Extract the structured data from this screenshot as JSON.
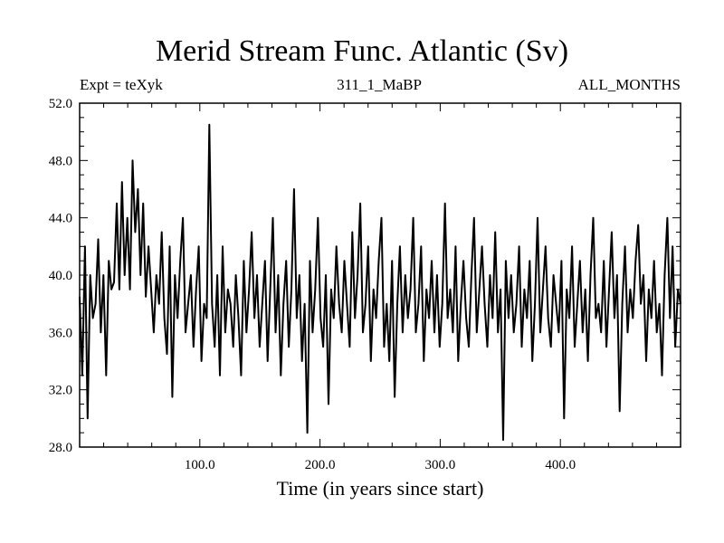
{
  "chart_data": {
    "type": "line",
    "title": "Merid Stream Func. Atlantic (Sv)",
    "subtitle_left": "Expt = teXyk",
    "subtitle_center": "311_1_MaBP",
    "subtitle_right": "ALL_MONTHS",
    "xlabel": "Time (in years since start)",
    "ylabel": "",
    "xlim": [
      0,
      500
    ],
    "ylim": [
      28,
      52
    ],
    "xticks": [
      100,
      200,
      300,
      400
    ],
    "xtick_labels": [
      "100.0",
      "200.0",
      "300.0",
      "400.0"
    ],
    "yticks": [
      28,
      32,
      36,
      40,
      44,
      48,
      52
    ],
    "ytick_labels": [
      "28.0",
      "32.0",
      "36.0",
      "40.0",
      "44.0",
      "48.0",
      "52.0"
    ],
    "series": [
      {
        "values": [
          38.5,
          33,
          42,
          30,
          40,
          37,
          38,
          42.5,
          36,
          40,
          33,
          41,
          39,
          39.5,
          45,
          39,
          46.5,
          40,
          44,
          39,
          48,
          43,
          46,
          40,
          45,
          38.5,
          42,
          39,
          36,
          40,
          38,
          43,
          37,
          34.5,
          42,
          31.5,
          40,
          37,
          41,
          44,
          36,
          38,
          40,
          35,
          39,
          42,
          34,
          38,
          37,
          50.5,
          38,
          35,
          40,
          33,
          42,
          36,
          39,
          38,
          35,
          40,
          37,
          33,
          41,
          36,
          39,
          43,
          37,
          40,
          35,
          38,
          41,
          34,
          39,
          44,
          36,
          40,
          33,
          38,
          41,
          35,
          39,
          46,
          37,
          40,
          34,
          38,
          29,
          41,
          36,
          39,
          44,
          37,
          35,
          40,
          31,
          39,
          37,
          42,
          38,
          36,
          41,
          38,
          35,
          43,
          37,
          40,
          45,
          36,
          38,
          42,
          34,
          39,
          37,
          41,
          44,
          35,
          38,
          34,
          41,
          31.5,
          38,
          42,
          36,
          40,
          37,
          39,
          44,
          36,
          38,
          42,
          34,
          39,
          37,
          41,
          36,
          40,
          35,
          38,
          45,
          37,
          39,
          36,
          42,
          34,
          38,
          41,
          37,
          35,
          40,
          44,
          36,
          39,
          42,
          38,
          35,
          40,
          37,
          43,
          36,
          39,
          28.5,
          41,
          37,
          40,
          36,
          38,
          42,
          35,
          39,
          37,
          41,
          34,
          38,
          44,
          36,
          39,
          42,
          37,
          35,
          40,
          38,
          36,
          41,
          30,
          39,
          37,
          42,
          35,
          38,
          41,
          36,
          39,
          34,
          40,
          44,
          37,
          38,
          36,
          41,
          35,
          39,
          43,
          37,
          40,
          30.5,
          38,
          42,
          36,
          39,
          37,
          41,
          43.5,
          38,
          40,
          34,
          39,
          37,
          41,
          36,
          38,
          33,
          40,
          44,
          37,
          42,
          35,
          39,
          38
        ]
      }
    ]
  }
}
